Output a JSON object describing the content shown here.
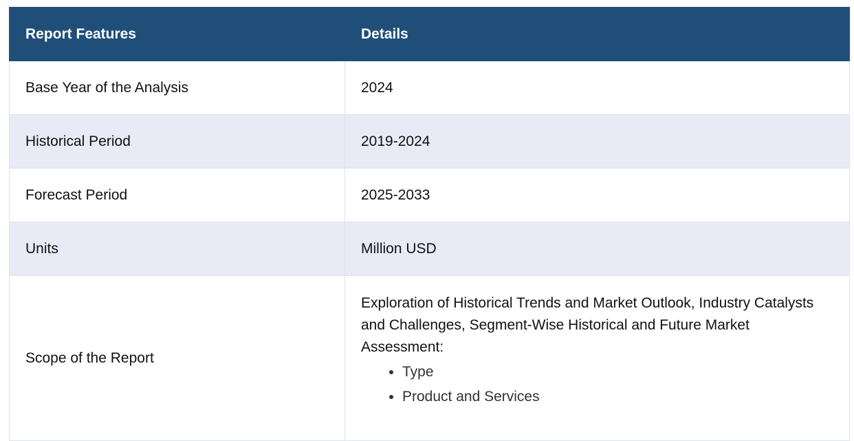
{
  "table": {
    "headers": [
      "Report Features",
      "Details"
    ],
    "rows": [
      {
        "feature": "Base Year of the Analysis",
        "detail": "2024"
      },
      {
        "feature": "Historical Period",
        "detail": "2019-2024"
      },
      {
        "feature": "Forecast Period",
        "detail": "2025-2033"
      },
      {
        "feature": "Units",
        "detail": "Million USD"
      }
    ],
    "scope": {
      "feature": "Scope of the Report",
      "intro": "Exploration of Historical Trends and Market Outlook, Industry Catalysts and Challenges, Segment-Wise Historical and Future Market Assessment:",
      "items": [
        "Type",
        "Product and Services"
      ]
    }
  },
  "colors": {
    "header_bg": "#1f4e79",
    "alt_row_bg": "#e8eaf6"
  }
}
